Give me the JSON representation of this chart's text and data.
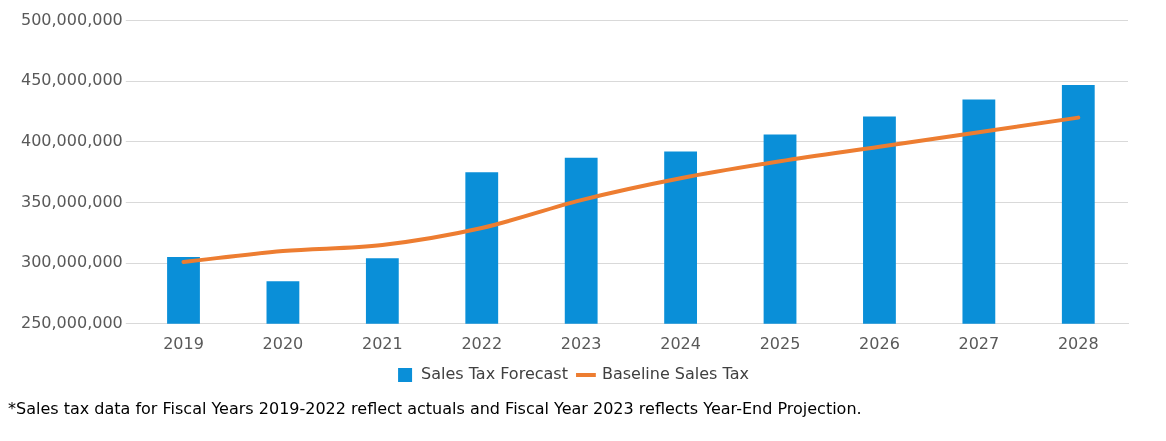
{
  "chart_data": {
    "type": "bar",
    "categories": [
      "2019",
      "2020",
      "2021",
      "2022",
      "2023",
      "2024",
      "2025",
      "2026",
      "2027",
      "2028"
    ],
    "series": [
      {
        "name": "Sales Tax Forecast",
        "color": "#0a8fd8",
        "values": [
          305000000,
          285000000,
          304000000,
          375000000,
          387000000,
          392000000,
          406000000,
          421000000,
          435000000,
          447000000
        ]
      },
      {
        "name": "Baseline Sales Tax",
        "type": "line",
        "color": "#ed7d31",
        "values": [
          301000000,
          310000000,
          315000000,
          329000000,
          352000000,
          370000000,
          384000000,
          396000000,
          408000000,
          420000000
        ]
      }
    ],
    "ylim": [
      250000000,
      500000000
    ],
    "yticks": [
      {
        "value": 250000000,
        "label": "250,000,000"
      },
      {
        "value": 300000000,
        "label": "300,000,000"
      },
      {
        "value": 350000000,
        "label": "350,000,000"
      },
      {
        "value": 400000000,
        "label": "400,000,000"
      },
      {
        "value": 450000000,
        "label": "450,000,000"
      },
      {
        "value": 500000000,
        "label": "500,000,000"
      }
    ],
    "grid": "y",
    "legend": "bottom",
    "marker": "none",
    "annotations": [
      "*Sales tax data for Fiscal Years 2019-2022 reflect actuals and Fiscal Year 2023 reflects Year-End Projection."
    ]
  }
}
